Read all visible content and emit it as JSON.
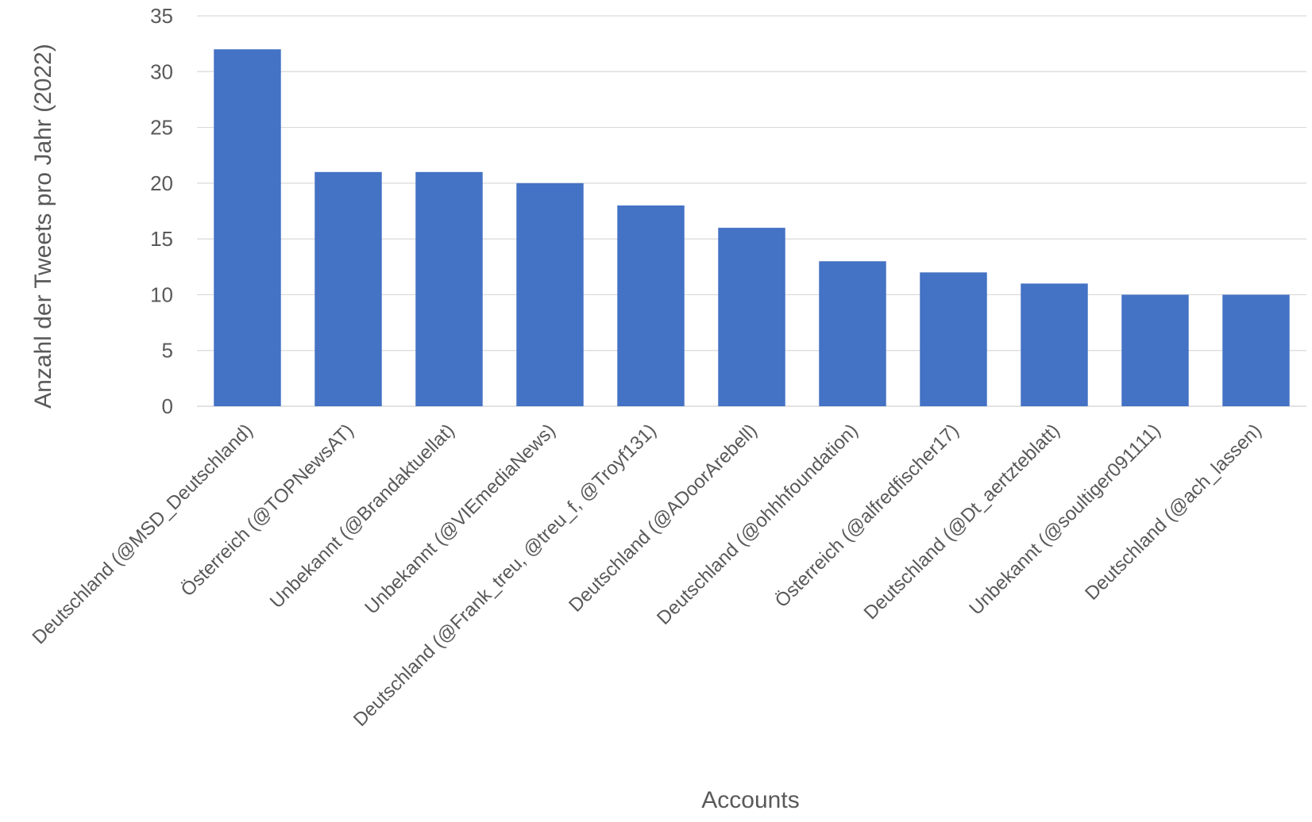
{
  "chart_data": {
    "type": "bar",
    "title": "",
    "xlabel": "Accounts",
    "ylabel": "Anzahl der Tweets pro Jahr (2022)",
    "ylim": [
      0,
      35
    ],
    "yticks": [
      0,
      5,
      10,
      15,
      20,
      25,
      30,
      35
    ],
    "grid": true,
    "legend": "none",
    "bar_color": "#4472C4",
    "categories": [
      "Deutschland (@MSD_Deutschland)",
      "Österreich (@TOPNewsAT)",
      "Unbekannt (@Brandaktuellat)",
      "Unbekannt (@VIEmediaNews)",
      "Deutschland (@Frank_treu, @treu_f, @Troyf131)",
      "Deutschland (@ADoorArebell)",
      "Deutschland (@ohhhfoundation)",
      "Österreich (@alfredfischer17)",
      "Deutschland (@Dt_aertzteblatt)",
      "Unbekannt (@soultiger091111)",
      "Deutschland (@ach_lassen)"
    ],
    "values": [
      32,
      21,
      21,
      20,
      18,
      16,
      13,
      12,
      11,
      10,
      10
    ]
  }
}
